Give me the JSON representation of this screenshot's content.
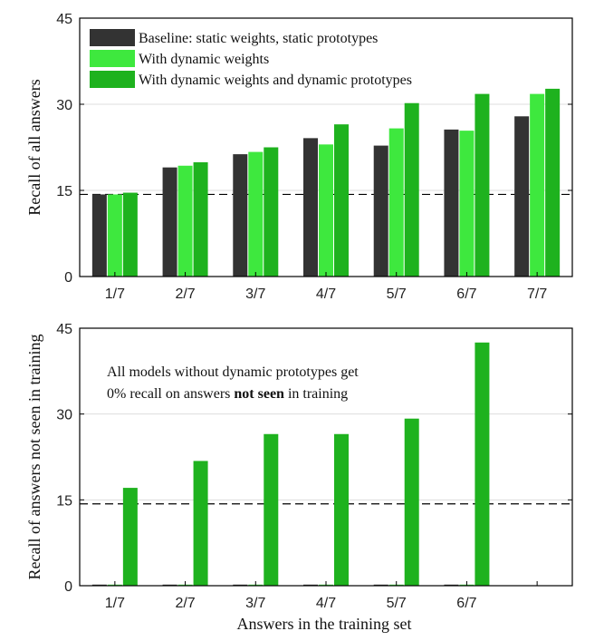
{
  "chart_data": [
    {
      "type": "bar",
      "ylabel": "Recall of all answers",
      "xlabel": "",
      "categories": [
        "1/7",
        "2/7",
        "3/7",
        "4/7",
        "5/7",
        "6/7",
        "7/7"
      ],
      "ylim": [
        0,
        45
      ],
      "yticks": [
        0,
        15,
        30,
        45
      ],
      "grid": "horizontal",
      "legend_position": "top-left",
      "reference_line": 14.3,
      "series": [
        {
          "name": "Baseline: static weights, static prototypes",
          "color": "#333333",
          "values": [
            14.3,
            19.0,
            21.3,
            24.1,
            22.8,
            25.6,
            27.9
          ]
        },
        {
          "name": "With dynamic weights",
          "color": "#3ee83e",
          "values": [
            14.3,
            19.3,
            21.7,
            23.0,
            25.8,
            25.4,
            31.8
          ]
        },
        {
          "name": "With dynamic weights and dynamic prototypes",
          "color": "#1eb21e",
          "values": [
            14.6,
            19.9,
            22.5,
            26.5,
            30.2,
            31.8,
            32.7
          ]
        }
      ]
    },
    {
      "type": "bar",
      "ylabel": "Recall of answers not seen in training",
      "xlabel": "Answers in the training set",
      "categories": [
        "1/7",
        "2/7",
        "3/7",
        "4/7",
        "5/7",
        "6/7"
      ],
      "extra_slot": true,
      "ylim": [
        0,
        45
      ],
      "yticks": [
        0,
        15,
        30,
        45
      ],
      "grid": "horizontal",
      "reference_line": 14.3,
      "series": [
        {
          "color": "#333333",
          "values": [
            0,
            0,
            0,
            0,
            0,
            0
          ]
        },
        {
          "color": "#3ee83e",
          "values": [
            0,
            0,
            0,
            0,
            0,
            0
          ]
        },
        {
          "color": "#1eb21e",
          "values": [
            17.1,
            21.8,
            26.5,
            26.5,
            29.2,
            42.5
          ]
        }
      ],
      "annotation": {
        "line1": "All models without dynamic prototypes get",
        "line2_before": "0% recall on answers ",
        "line2_bold": "not seen",
        "line2_after": " in training"
      }
    }
  ]
}
